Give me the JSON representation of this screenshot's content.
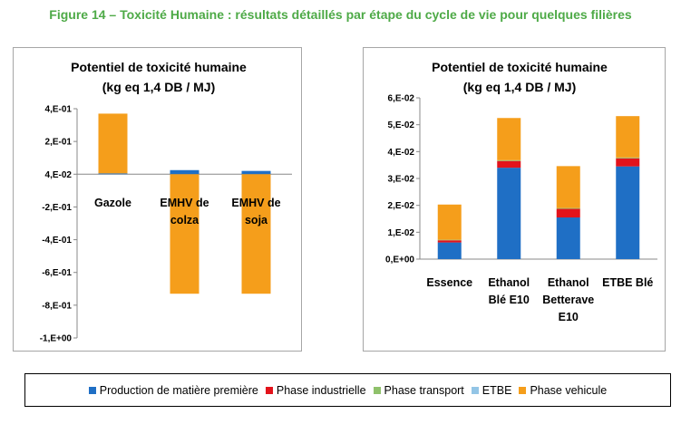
{
  "figure_title": "Figure 14 – Toxicité Humaine : résultats détaillés par étape du cycle de vie pour quelques filières",
  "legend": [
    {
      "name": "Production de matière première",
      "color": "#1f6fc5"
    },
    {
      "name": "Phase industrielle",
      "color": "#e3131b"
    },
    {
      "name": "Phase transport",
      "color": "#8fc16b"
    },
    {
      "name": "ETBE",
      "color": "#93c5e6"
    },
    {
      "name": "Phase vehicule",
      "color": "#f59e1b"
    }
  ],
  "chart_data": [
    {
      "type": "bar",
      "stacked": true,
      "title": "Potentiel de toxicité humaine",
      "subtitle": "(kg eq 1,4 DB / MJ)",
      "categories": [
        [
          "Gazole"
        ],
        [
          "EMHV de",
          "colza"
        ],
        [
          "EMHV de",
          "soja"
        ]
      ],
      "yticks": [
        "4,E-01",
        "2,E-01",
        "4,E-02",
        "-2,E-01",
        "-4,E-01",
        "-6,E-01",
        "-8,E-01",
        "-1,E+00"
      ],
      "ylim": [
        -1.0,
        0.4
      ],
      "grid": false,
      "series": [
        {
          "name": "Production de matière première",
          "values": [
            0.005,
            0.025,
            0.02
          ]
        },
        {
          "name": "Phase industrielle",
          "values": [
            0.0,
            0.0,
            0.0
          ]
        },
        {
          "name": "Phase transport",
          "values": [
            0.0,
            0.0,
            0.0
          ]
        },
        {
          "name": "ETBE",
          "values": [
            0.0,
            0.0,
            0.0
          ]
        },
        {
          "name": "Phase vehicule",
          "values": [
            0.365,
            -0.73,
            -0.73
          ]
        }
      ]
    },
    {
      "type": "bar",
      "stacked": true,
      "title": "Potentiel de toxicité humaine",
      "subtitle": "(kg eq 1,4 DB / MJ)",
      "categories": [
        [
          "Essence"
        ],
        [
          "Ethanol",
          "Blé E10"
        ],
        [
          "Ethanol",
          "Betterave",
          "E10"
        ],
        [
          "ETBE Blé"
        ]
      ],
      "yticks": [
        "6,E-02",
        "5,E-02",
        "4,E-02",
        "3,E-02",
        "2,E-02",
        "1,E-02",
        "0,E+00"
      ],
      "ylim": [
        0,
        0.06
      ],
      "grid": false,
      "series": [
        {
          "name": "Production de matière première",
          "values": [
            0.0062,
            0.034,
            0.0155,
            0.0345
          ]
        },
        {
          "name": "Phase industrielle",
          "values": [
            0.0008,
            0.0025,
            0.0032,
            0.003
          ]
        },
        {
          "name": "Phase transport",
          "values": [
            0.0002,
            0.0003,
            0.0003,
            0.0003
          ]
        },
        {
          "name": "ETBE",
          "values": [
            0.0,
            0.0,
            0.0,
            0.0
          ]
        },
        {
          "name": "Phase vehicule",
          "values": [
            0.0131,
            0.0157,
            0.0156,
            0.0154
          ]
        }
      ]
    }
  ]
}
